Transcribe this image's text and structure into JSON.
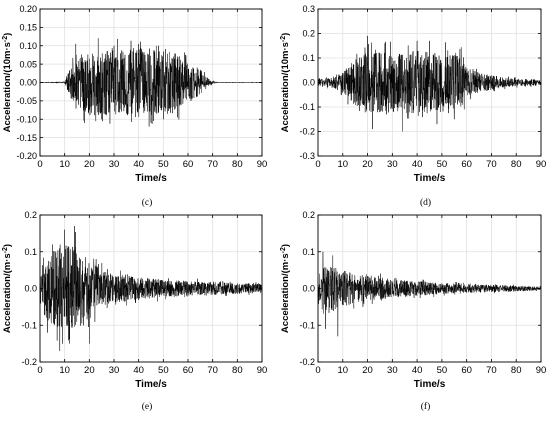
{
  "chart_data": [
    {
      "type": "line",
      "panel_label": "(c)",
      "xlabel": "Time/s",
      "ylabel": "Acceleration/(10m·s⁻²)",
      "xlim": [
        0,
        90
      ],
      "ylim": [
        -0.2,
        0.2
      ],
      "xticks": [
        0,
        10,
        20,
        30,
        40,
        50,
        60,
        70,
        80,
        90
      ],
      "yticks": [
        -0.2,
        -0.15,
        -0.1,
        -0.05,
        0.0,
        0.05,
        0.1,
        0.15,
        0.2
      ],
      "ytick_labels": [
        "-0.20",
        "-0.15",
        "-0.10",
        "-0.05",
        "0.00",
        "0.05",
        "0.10",
        "0.15",
        "0.20"
      ],
      "grid": true,
      "series": [
        {
          "envelope": {
            "t": [
              0,
              10,
              11,
              13,
              20,
              30,
              40,
              50,
              55,
              60,
              65,
              68,
              70,
              72,
              90
            ],
            "amp": [
              0.001,
              0.002,
              0.02,
              0.05,
              0.09,
              0.09,
              0.095,
              0.09,
              0.08,
              0.06,
              0.035,
              0.012,
              0.004,
              0.001,
              0.001
            ]
          },
          "peaks": [
            {
              "t": 14.5,
              "v": 0.105
            },
            {
              "t": 18,
              "v": -0.11
            },
            {
              "t": 30,
              "v": 0.1
            },
            {
              "t": 40,
              "v": 0.105
            },
            {
              "t": 45,
              "v": -0.11
            },
            {
              "t": 48,
              "v": 0.1
            },
            {
              "t": 25,
              "v": -0.1
            },
            {
              "t": 50,
              "v": -0.1
            }
          ]
        }
      ]
    },
    {
      "type": "line",
      "panel_label": "(d)",
      "xlabel": "Time/s",
      "ylabel": "Acceleration/(10m·s⁻²)",
      "xlim": [
        0,
        90
      ],
      "ylim": [
        -0.3,
        0.3
      ],
      "xticks": [
        0,
        10,
        20,
        30,
        40,
        50,
        60,
        70,
        80,
        90
      ],
      "yticks": [
        -0.3,
        -0.2,
        -0.1,
        0.0,
        0.1,
        0.2,
        0.3
      ],
      "ytick_labels": [
        "-0.3",
        "-0.2",
        "-0.1",
        "0.0",
        "0.1",
        "0.2",
        "0.3"
      ],
      "grid": true,
      "series": [
        {
          "envelope": {
            "t": [
              0,
              5,
              10,
              12,
              20,
              30,
              40,
              50,
              58,
              60,
              65,
              70,
              75,
              80,
              90
            ],
            "amp": [
              0.015,
              0.02,
              0.04,
              0.07,
              0.13,
              0.12,
              0.13,
              0.12,
              0.11,
              0.06,
              0.04,
              0.03,
              0.02,
              0.015,
              0.012
            ]
          },
          "peaks": [
            {
              "t": 20,
              "v": 0.19
            },
            {
              "t": 22,
              "v": -0.19
            },
            {
              "t": 34,
              "v": -0.2
            },
            {
              "t": 40,
              "v": 0.17
            },
            {
              "t": 45,
              "v": 0.17
            },
            {
              "t": 48,
              "v": -0.17
            },
            {
              "t": 27,
              "v": 0.16
            },
            {
              "t": 55,
              "v": -0.15
            }
          ]
        }
      ]
    },
    {
      "type": "line",
      "panel_label": "(e)",
      "xlabel": "Time/s",
      "ylabel": "Acceleration/(m·s⁻²)",
      "xlim": [
        0,
        90
      ],
      "ylim": [
        -0.2,
        0.2
      ],
      "xticks": [
        0,
        10,
        20,
        30,
        40,
        50,
        60,
        70,
        80,
        90
      ],
      "yticks": [
        -0.2,
        -0.1,
        0.0,
        0.1,
        0.2
      ],
      "ytick_labels": [
        "-0.2",
        "-0.1",
        "0.0",
        "0.1",
        "0.2"
      ],
      "grid": true,
      "series": [
        {
          "envelope": {
            "t": [
              0,
              2,
              5,
              10,
              15,
              20,
              25,
              30,
              40,
              50,
              60,
              70,
              80,
              90
            ],
            "amp": [
              0.02,
              0.08,
              0.1,
              0.12,
              0.11,
              0.08,
              0.05,
              0.04,
              0.03,
              0.025,
              0.02,
              0.018,
              0.015,
              0.012
            ]
          },
          "peaks": [
            {
              "t": 10,
              "v": 0.16
            },
            {
              "t": 14,
              "v": 0.17
            },
            {
              "t": 8,
              "v": -0.17
            },
            {
              "t": 12,
              "v": -0.15
            },
            {
              "t": 20,
              "v": -0.15
            },
            {
              "t": 5,
              "v": 0.12
            },
            {
              "t": 3,
              "v": -0.12
            }
          ]
        }
      ]
    },
    {
      "type": "line",
      "panel_label": "(f)",
      "xlabel": "Time/s",
      "ylabel": "Acceleration/(m·s⁻²)",
      "xlim": [
        0,
        90
      ],
      "ylim": [
        -0.2,
        0.2
      ],
      "xticks": [
        0,
        10,
        20,
        30,
        40,
        50,
        60,
        70,
        80,
        90
      ],
      "yticks": [
        -0.2,
        -0.1,
        0.0,
        0.1,
        0.2
      ],
      "ytick_labels": [
        "-0.2",
        "-0.1",
        "0.0",
        "0.1",
        "0.2"
      ],
      "grid": true,
      "series": [
        {
          "envelope": {
            "t": [
              0,
              2,
              5,
              10,
              15,
              20,
              30,
              40,
              50,
              60,
              70,
              80,
              90
            ],
            "amp": [
              0.03,
              0.07,
              0.06,
              0.05,
              0.04,
              0.035,
              0.025,
              0.02,
              0.015,
              0.012,
              0.01,
              0.008,
              0.006
            ]
          },
          "peaks": [
            {
              "t": 2,
              "v": 0.1
            },
            {
              "t": 3,
              "v": -0.11
            },
            {
              "t": 8,
              "v": -0.13
            },
            {
              "t": 6,
              "v": 0.09
            }
          ]
        }
      ]
    }
  ]
}
